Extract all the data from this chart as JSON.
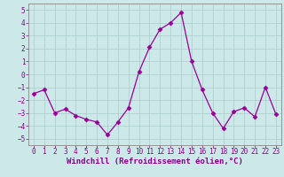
{
  "x": [
    0,
    1,
    2,
    3,
    4,
    5,
    6,
    7,
    8,
    9,
    10,
    11,
    12,
    13,
    14,
    15,
    16,
    17,
    18,
    19,
    20,
    21,
    22,
    23
  ],
  "y": [
    -1.5,
    -1.2,
    -3.0,
    -2.7,
    -3.2,
    -3.5,
    -3.7,
    -4.7,
    -3.7,
    -2.6,
    0.2,
    2.1,
    3.5,
    4.0,
    4.8,
    1.0,
    -1.2,
    -3.0,
    -4.2,
    -2.9,
    -2.6,
    -3.3,
    -1.0,
    -3.1
  ],
  "line_color": "#990099",
  "marker": "D",
  "marker_size": 2.5,
  "bg_color": "#cce8e8",
  "grid_color": "#aacccc",
  "xlabel": "Windchill (Refroidissement éolien,°C)",
  "ylabel": "",
  "ylim": [
    -5.5,
    5.5
  ],
  "xlim": [
    -0.5,
    23.5
  ],
  "yticks": [
    -5,
    -4,
    -3,
    -2,
    -1,
    0,
    1,
    2,
    3,
    4,
    5
  ],
  "xticks": [
    0,
    1,
    2,
    3,
    4,
    5,
    6,
    7,
    8,
    9,
    10,
    11,
    12,
    13,
    14,
    15,
    16,
    17,
    18,
    19,
    20,
    21,
    22,
    23
  ],
  "font_color": "#880088",
  "tick_fontsize": 5.5,
  "label_fontsize": 6.5,
  "spine_color": "#888888"
}
